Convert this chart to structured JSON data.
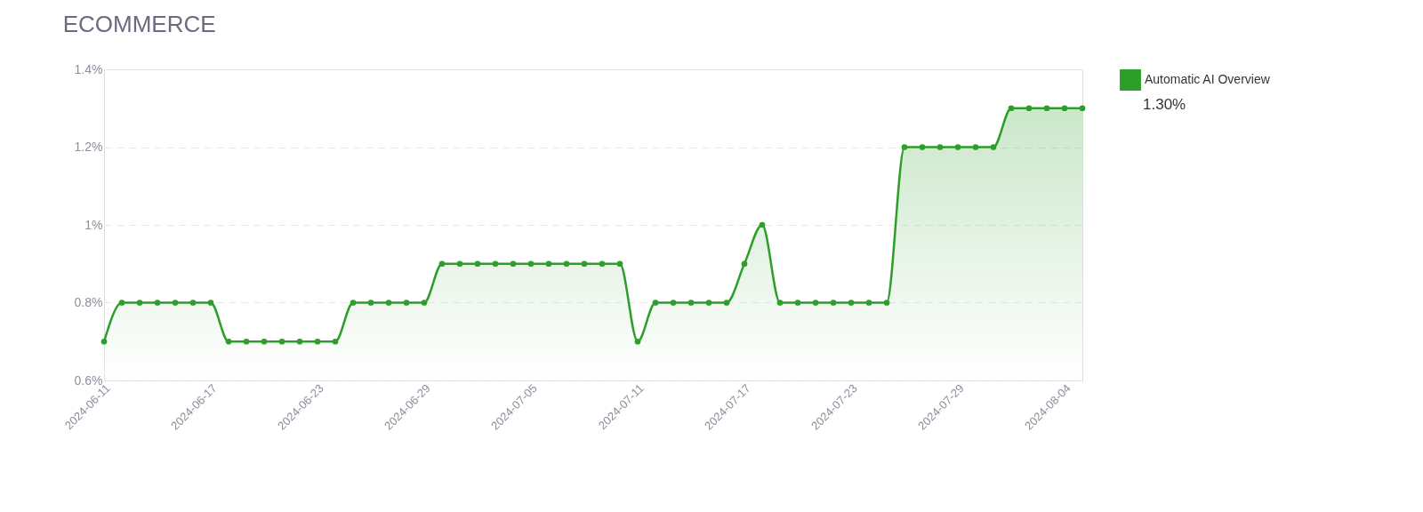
{
  "chart_data": {
    "type": "area",
    "title": "ECOMMERCE",
    "x": [
      "2024-06-11",
      "2024-06-12",
      "2024-06-13",
      "2024-06-14",
      "2024-06-15",
      "2024-06-16",
      "2024-06-17",
      "2024-06-18",
      "2024-06-19",
      "2024-06-20",
      "2024-06-21",
      "2024-06-22",
      "2024-06-23",
      "2024-06-24",
      "2024-06-25",
      "2024-06-26",
      "2024-06-27",
      "2024-06-28",
      "2024-06-29",
      "2024-06-30",
      "2024-07-01",
      "2024-07-02",
      "2024-07-03",
      "2024-07-04",
      "2024-07-05",
      "2024-07-06",
      "2024-07-07",
      "2024-07-08",
      "2024-07-09",
      "2024-07-10",
      "2024-07-11",
      "2024-07-12",
      "2024-07-13",
      "2024-07-14",
      "2024-07-15",
      "2024-07-16",
      "2024-07-17",
      "2024-07-18",
      "2024-07-19",
      "2024-07-20",
      "2024-07-21",
      "2024-07-22",
      "2024-07-23",
      "2024-07-24",
      "2024-07-25",
      "2024-07-26",
      "2024-07-27",
      "2024-07-28",
      "2024-07-29",
      "2024-07-30",
      "2024-07-31",
      "2024-08-01",
      "2024-08-02",
      "2024-08-03",
      "2024-08-04",
      "2024-08-05"
    ],
    "series": [
      {
        "name": "Automatic AI Overview",
        "color": "#2e9e2a",
        "values": [
          0.7,
          0.8,
          0.8,
          0.8,
          0.8,
          0.8,
          0.8,
          0.7,
          0.7,
          0.7,
          0.7,
          0.7,
          0.7,
          0.7,
          0.8,
          0.8,
          0.8,
          0.8,
          0.8,
          0.9,
          0.9,
          0.9,
          0.9,
          0.9,
          0.9,
          0.9,
          0.9,
          0.9,
          0.9,
          0.9,
          0.7,
          0.8,
          0.8,
          0.8,
          0.8,
          0.8,
          0.9,
          1.0,
          0.8,
          0.8,
          0.8,
          0.8,
          0.8,
          0.8,
          0.8,
          1.2,
          1.2,
          1.2,
          1.2,
          1.2,
          1.2,
          1.3,
          1.3,
          1.3,
          1.3,
          1.3
        ]
      }
    ],
    "xlim": [
      "2024-06-11",
      "2024-08-05"
    ],
    "xticks": [
      "2024-06-11",
      "2024-06-17",
      "2024-06-23",
      "2024-06-29",
      "2024-07-05",
      "2024-07-11",
      "2024-07-17",
      "2024-07-23",
      "2024-07-29",
      "2024-08-04"
    ],
    "ylim": [
      0.6,
      1.4
    ],
    "yticks": [
      {
        "value": 0.6,
        "label": "0.6%"
      },
      {
        "value": 0.8,
        "label": "0.8%"
      },
      {
        "value": 1.0,
        "label": "1%"
      },
      {
        "value": 1.2,
        "label": "1.2%"
      },
      {
        "value": 1.4,
        "label": "1.4%"
      }
    ],
    "annotations": [
      "1.30%"
    ],
    "grid": "y",
    "legend": "right",
    "marker": "circle",
    "line_style": "solid"
  }
}
